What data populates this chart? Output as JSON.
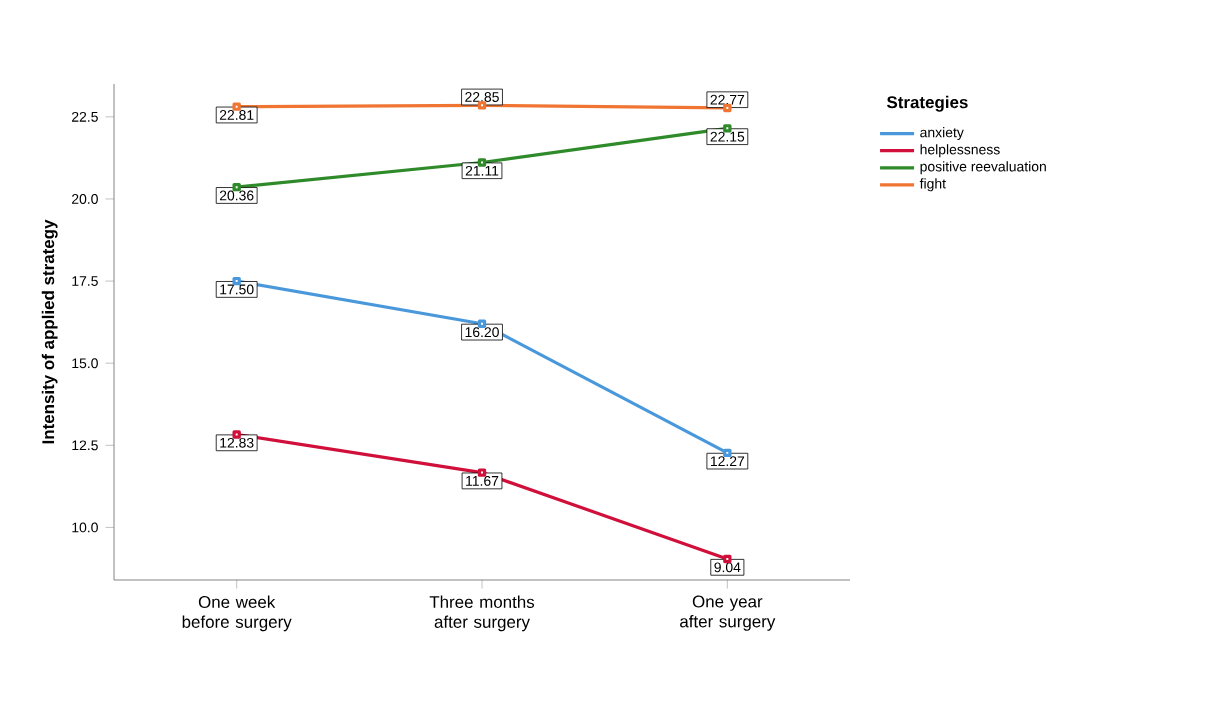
{
  "chart_data": {
    "type": "line",
    "ylabel": "Intensity of applied strategy",
    "legend_title": "Strategies",
    "categories": [
      "One week before surgery",
      "Three months after surgery",
      "One year after surgery"
    ],
    "series": [
      {
        "name": "anxiety",
        "color": "#4a98dc",
        "values": [
          17.5,
          16.2,
          12.27
        ],
        "value_labels": [
          "17.50",
          "16.20",
          "12.27"
        ]
      },
      {
        "name": "helplessness",
        "color": "#d0103a",
        "values": [
          12.83,
          11.67,
          9.04
        ],
        "value_labels": [
          "12.83",
          "11.67",
          "9.04"
        ]
      },
      {
        "name": "positive reevaluation",
        "color": "#2f8a2a",
        "values": [
          20.36,
          21.11,
          22.15
        ],
        "value_labels": [
          "20.36",
          "21.11",
          "22.15"
        ]
      },
      {
        "name": "fight",
        "color": "#f07532",
        "values": [
          22.81,
          22.85,
          22.77
        ],
        "value_labels": [
          "22.81",
          "22.85",
          "22.77"
        ]
      }
    ],
    "ylim": [
      8.4,
      23.5
    ],
    "yticks": [
      {
        "value": 10,
        "label": "10.0"
      },
      {
        "value": 12.5,
        "label": "12.5"
      },
      {
        "value": 15,
        "label": "15.0"
      },
      {
        "value": 17.5,
        "label": "17.5"
      },
      {
        "value": 20,
        "label": "20.0"
      },
      {
        "value": 22.5,
        "label": "22.5"
      }
    ],
    "legend": "top right",
    "marker": "square",
    "grid": false
  }
}
